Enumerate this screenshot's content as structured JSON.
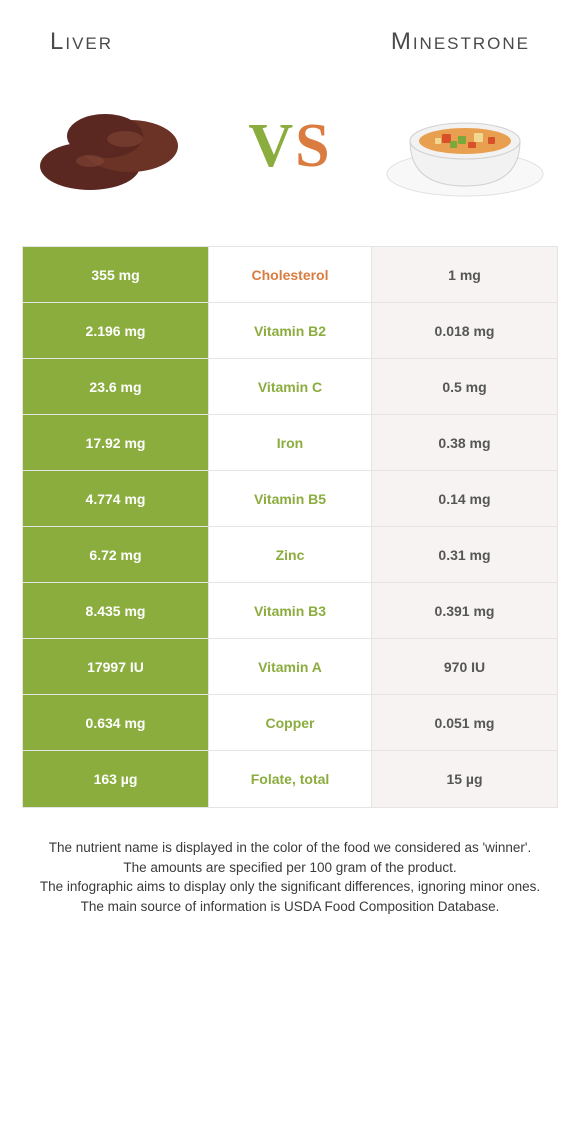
{
  "header": {
    "left_label": "Liver",
    "right_label": "Minestrone"
  },
  "vs": {
    "v": "V",
    "s": "S"
  },
  "colors": {
    "left_bg": "#8aad3e",
    "right_bg": "#f7f3f3",
    "winner_left": "#8aad3e",
    "winner_right": "#da7b3f",
    "row_border": "#e4e4e4"
  },
  "table": {
    "rows": [
      {
        "left": "355 mg",
        "label": "Cholesterol",
        "right": "1 mg",
        "winner": "right"
      },
      {
        "left": "2.196 mg",
        "label": "Vitamin B2",
        "right": "0.018 mg",
        "winner": "left"
      },
      {
        "left": "23.6 mg",
        "label": "Vitamin C",
        "right": "0.5 mg",
        "winner": "left"
      },
      {
        "left": "17.92 mg",
        "label": "Iron",
        "right": "0.38 mg",
        "winner": "left"
      },
      {
        "left": "4.774 mg",
        "label": "Vitamin B5",
        "right": "0.14 mg",
        "winner": "left"
      },
      {
        "left": "6.72 mg",
        "label": "Zinc",
        "right": "0.31 mg",
        "winner": "left"
      },
      {
        "left": "8.435 mg",
        "label": "Vitamin B3",
        "right": "0.391 mg",
        "winner": "left"
      },
      {
        "left": "17997 IU",
        "label": "Vitamin A",
        "right": "970 IU",
        "winner": "left"
      },
      {
        "left": "0.634 mg",
        "label": "Copper",
        "right": "0.051 mg",
        "winner": "left"
      },
      {
        "left": "163 µg",
        "label": "Folate, total",
        "right": "15 µg",
        "winner": "left"
      }
    ]
  },
  "footer": {
    "line1": "The nutrient name is displayed in the color of the food we considered as 'winner'.",
    "line2": "The amounts are specified per 100 gram of the product.",
    "line3": "The infographic aims to display only the significant differences, ignoring minor ones.",
    "line4": "The main source of information is USDA Food Composition Database."
  }
}
